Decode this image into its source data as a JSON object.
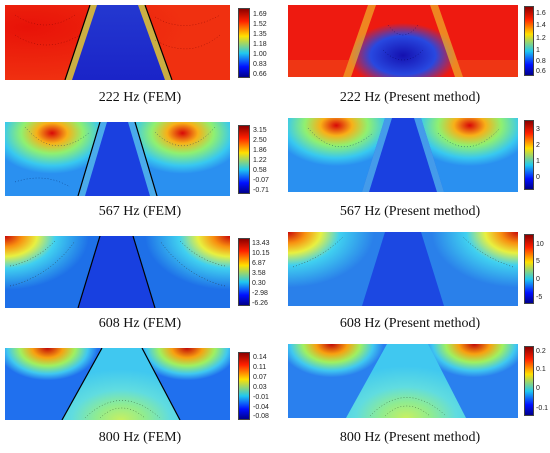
{
  "figure": {
    "panels": [
      {
        "id": "p222fem",
        "caption": "222 Hz (FEM)",
        "method": "FEM",
        "ticks": [
          "1.69",
          "1.52",
          "1.35",
          "1.18",
          "1.00",
          "0.83",
          "0.66"
        ],
        "sides": "#ee1a10",
        "center": "#1a2fd8"
      },
      {
        "id": "p222pm",
        "caption": "222 Hz (Present method)",
        "method": "present",
        "ticks": [
          "1.6",
          "1.4",
          "1.2",
          "1",
          "0.8",
          "0.6"
        ],
        "sides": "#ee1a10",
        "center": "#1a2fd8"
      },
      {
        "id": "p567fem",
        "caption": "567 Hz (FEM)",
        "method": "FEM",
        "ticks": [
          "3.15",
          "2.50",
          "1.86",
          "1.22",
          "0.58",
          "-0.07",
          "-0.71"
        ],
        "sides": "#37c8f0",
        "center": "#1a3fe0"
      },
      {
        "id": "p567pm",
        "caption": "567 Hz (Present method)",
        "method": "present",
        "ticks": [
          "3",
          "2",
          "1",
          "0"
        ],
        "sides": "#37c8f0",
        "center": "#1a3fe0"
      },
      {
        "id": "p608fem",
        "caption": "608 Hz (FEM)",
        "method": "FEM",
        "ticks": [
          "13.43",
          "10.15",
          "6.87",
          "3.58",
          "0.30",
          "-2.98",
          "-6.26"
        ],
        "sides": "#2a9cf0",
        "center": "#1a40e0"
      },
      {
        "id": "p608pm",
        "caption": "608 Hz (Present method)",
        "method": "present",
        "ticks": [
          "10",
          "5",
          "0",
          "-5"
        ],
        "sides": "#2a9cf0",
        "center": "#1a40e0"
      },
      {
        "id": "p800fem",
        "caption": "800 Hz (FEM)",
        "method": "FEM",
        "ticks": [
          "0.14",
          "0.11",
          "0.07",
          "0.03",
          "-0.01",
          "-0.04",
          "-0.08"
        ],
        "sides": "#1f7ef0",
        "center": "#55d8e0"
      },
      {
        "id": "p800pm",
        "caption": "800 Hz (Present method)",
        "method": "present",
        "ticks": [
          "0.2",
          "0.1",
          "0",
          "-0.1"
        ],
        "sides": "#1f7ef0",
        "center": "#55d8e0"
      }
    ],
    "colormap": {
      "top": "#8b0000",
      "upper": "#ff2000",
      "mid": "#ffe000",
      "lower": "#20c8f0",
      "bottom": "#00008b"
    }
  }
}
